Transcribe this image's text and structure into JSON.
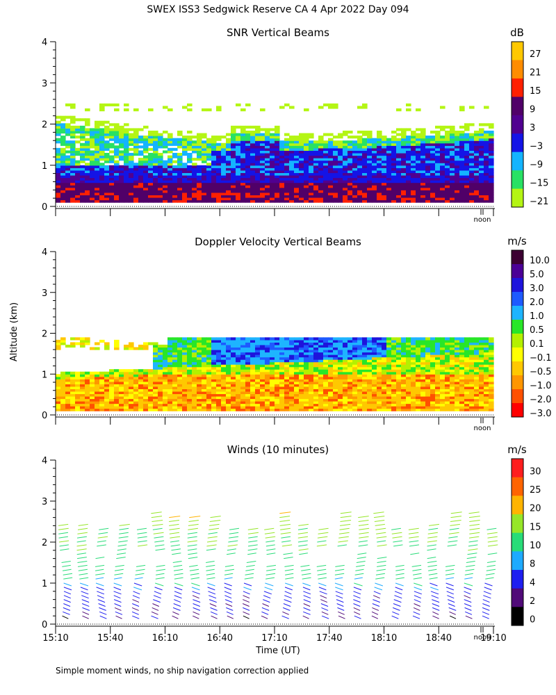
{
  "page_title": "SWEX ISS3 Sedgwick Reserve CA   4 Apr 2022 Day 094",
  "y_axis_label": "Altitude (km)",
  "footnote": "Simple moment winds, no ship navigation correction applied",
  "noon_label": "noon",
  "chart_data": [
    {
      "type": "heatmap",
      "title": "SNR Vertical Beams",
      "unit": "dB",
      "ylim": [
        0,
        4
      ],
      "yticks": [
        "0",
        "1",
        "2",
        "3",
        "4"
      ],
      "colorbar": {
        "labels": [
          "27",
          "21",
          "15",
          "9",
          "3",
          "−3",
          "−9",
          "−15",
          "−21"
        ],
        "colors": [
          "#ffc800",
          "#ff8c00",
          "#ff2000",
          "#500068",
          "#500090",
          "#1414e6",
          "#14b4ff",
          "#28e164",
          "#b4f514"
        ]
      },
      "layers": [
        {
          "name": "sparse echoes",
          "base_km": 1.8,
          "top_km": 2.6
        },
        {
          "name": "upper layer",
          "base_km": 1.2,
          "top_km": 2.0
        },
        {
          "name": "mid layer",
          "base_km": 0.8,
          "top_km": 1.6
        },
        {
          "name": "boundary layer",
          "base_km": 0.1,
          "top_km": 0.8
        }
      ]
    },
    {
      "type": "heatmap",
      "title": "Doppler Velocity Vertical Beams",
      "unit": "m/s",
      "ylim": [
        0,
        4
      ],
      "yticks": [
        "0",
        "1",
        "2",
        "3",
        "4"
      ],
      "colorbar": {
        "labels": [
          "10.0",
          "5.0",
          "3.0",
          "2.0",
          "1.0",
          "0.5",
          "0.1",
          "−0.1",
          "−0.5",
          "−1.0",
          "−2.0",
          "−3.0"
        ],
        "colors": [
          "#3c0032",
          "#4b0096",
          "#1e14dc",
          "#1e5aff",
          "#1eb4ff",
          "#28e628",
          "#b4f000",
          "#ffff00",
          "#ffc800",
          "#ff9600",
          "#ff5000",
          "#ff0000"
        ]
      },
      "layers": [
        {
          "name": "upper updraft",
          "base_km": 0.9,
          "top_km": 1.9
        },
        {
          "name": "mixed",
          "base_km": 0.6,
          "top_km": 1.5
        },
        {
          "name": "boundary layer",
          "base_km": 0.1,
          "top_km": 0.9
        }
      ]
    },
    {
      "type": "wind_barbs",
      "title": "Winds (10 minutes)",
      "unit": "m/s",
      "ylim": [
        0,
        4
      ],
      "yticks": [
        "0",
        "1",
        "2",
        "3",
        "4"
      ],
      "xlabel": "Time (UT)",
      "xticks": [
        "15:10",
        "15:40",
        "16:10",
        "16:40",
        "17:10",
        "17:40",
        "18:10",
        "18:40",
        "19:10"
      ],
      "colorbar": {
        "labels": [
          "30",
          "25",
          "20",
          "15",
          "10",
          "8",
          "4",
          "2",
          "0"
        ],
        "colors": [
          "#ff1e1e",
          "#ff6400",
          "#ffb400",
          "#96e628",
          "#28dc78",
          "#1eaaff",
          "#1e1ef0",
          "#500a78",
          "#000000"
        ]
      },
      "profiles_count": 24,
      "speed_profile_ms": [
        {
          "altitude_km": 0.3,
          "speed": 4
        },
        {
          "altitude_km": 0.8,
          "speed": 6
        },
        {
          "altitude_km": 1.2,
          "speed": 12
        },
        {
          "altitude_km": 2.0,
          "speed": 14
        },
        {
          "altitude_km": 2.8,
          "speed": 20
        }
      ]
    }
  ]
}
